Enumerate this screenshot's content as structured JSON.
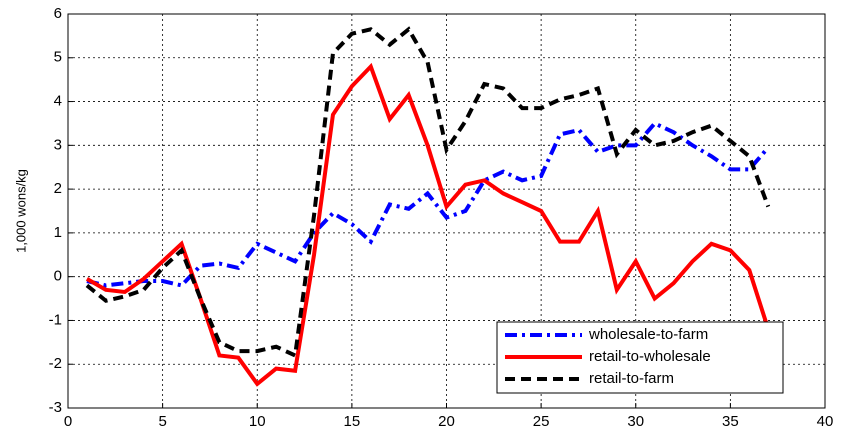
{
  "chart_data": {
    "type": "line",
    "ylabel": "1,000 wons/kg",
    "x": [
      1,
      2,
      3,
      4,
      5,
      6,
      7,
      8,
      9,
      10,
      11,
      12,
      13,
      14,
      15,
      16,
      17,
      18,
      19,
      20,
      21,
      22,
      23,
      24,
      25,
      26,
      27,
      28,
      29,
      30,
      31,
      32,
      33,
      34,
      35,
      36,
      37
    ],
    "xlim": [
      0,
      40
    ],
    "xticks": [
      0,
      5,
      10,
      15,
      20,
      25,
      30,
      35,
      40
    ],
    "ylim": [
      -3,
      6
    ],
    "yticks": [
      -3,
      -2,
      -1,
      0,
      1,
      2,
      3,
      4,
      5,
      6
    ],
    "grid": true,
    "legend": "lower right",
    "series": [
      {
        "name": "wholesale-to-farm",
        "color": "#0000ff",
        "dash": "dashdot",
        "values": [
          -0.1,
          -0.2,
          -0.15,
          -0.1,
          -0.1,
          -0.2,
          0.25,
          0.3,
          0.2,
          0.75,
          0.55,
          0.35,
          1.0,
          1.45,
          1.2,
          0.8,
          1.65,
          1.55,
          1.9,
          1.35,
          1.5,
          2.2,
          2.4,
          2.2,
          2.3,
          3.25,
          3.35,
          2.85,
          3.0,
          3.0,
          3.5,
          3.3,
          3.0,
          2.75,
          2.45,
          2.45,
          2.95
        ]
      },
      {
        "name": "retail-to-wholesale",
        "color": "#ff0000",
        "dash": "solid",
        "values": [
          -0.05,
          -0.3,
          -0.35,
          -0.05,
          0.35,
          0.75,
          -0.5,
          -1.8,
          -1.85,
          -2.45,
          -2.1,
          -2.15,
          0.5,
          3.7,
          4.35,
          4.8,
          3.6,
          4.15,
          3.0,
          1.6,
          2.1,
          2.2,
          1.9,
          1.7,
          1.5,
          0.8,
          0.8,
          1.5,
          -0.3,
          0.35,
          -0.5,
          -0.15,
          0.35,
          0.75,
          0.6,
          0.15,
          -1.2
        ]
      },
      {
        "name": "retail-to-farm",
        "color": "#000000",
        "dash": "dashed",
        "values": [
          -0.2,
          -0.55,
          -0.45,
          -0.3,
          0.2,
          0.6,
          -0.5,
          -1.5,
          -1.7,
          -1.7,
          -1.6,
          -1.8,
          1.4,
          5.1,
          5.55,
          5.65,
          5.3,
          5.65,
          4.9,
          2.9,
          3.55,
          4.4,
          4.3,
          3.85,
          3.85,
          4.05,
          4.15,
          4.3,
          2.8,
          3.35,
          3.0,
          3.1,
          3.3,
          3.45,
          3.1,
          2.75,
          1.6
        ]
      }
    ]
  }
}
